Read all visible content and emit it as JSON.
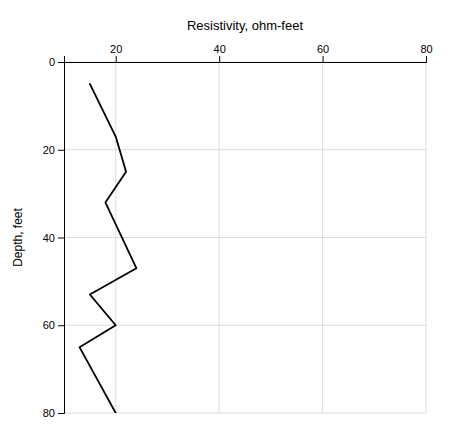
{
  "chart_data": {
    "type": "line",
    "x": [
      15,
      20,
      22,
      18,
      24,
      15,
      20,
      13,
      20
    ],
    "values": [
      5,
      17,
      25,
      32,
      47,
      53,
      60,
      65,
      80
    ],
    "xlabel": "Resistivity, ohm-feet",
    "ylabel": "Depth, feet",
    "xlim": [
      10,
      80
    ],
    "ylim": [
      80,
      0
    ],
    "xticks": [
      20,
      40,
      60,
      80
    ],
    "yticks": [
      0,
      20,
      40,
      60,
      80
    ],
    "color": "#000000",
    "grid": true
  }
}
